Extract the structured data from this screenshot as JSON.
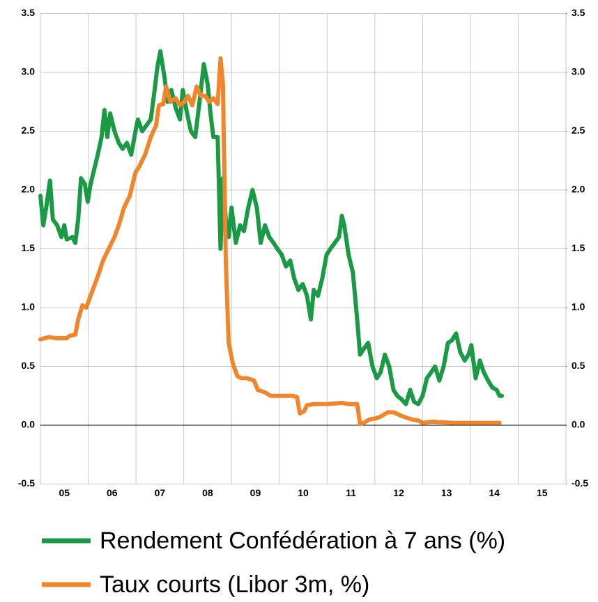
{
  "chart_data": {
    "type": "line",
    "xlim": [
      2005,
      2016
    ],
    "xgrid": [
      2005,
      2006,
      2007,
      2008,
      2009,
      2010,
      2011,
      2012,
      2013,
      2014,
      2015,
      2016
    ],
    "xticks": [
      {
        "value": 2005.5,
        "label": "05"
      },
      {
        "value": 2006.5,
        "label": "06"
      },
      {
        "value": 2007.5,
        "label": "07"
      },
      {
        "value": 2008.5,
        "label": "08"
      },
      {
        "value": 2009.5,
        "label": "09"
      },
      {
        "value": 2010.5,
        "label": "10"
      },
      {
        "value": 2011.5,
        "label": "11"
      },
      {
        "value": 2012.5,
        "label": "12"
      },
      {
        "value": 2013.5,
        "label": "13"
      },
      {
        "value": 2014.5,
        "label": "14"
      },
      {
        "value": 2015.5,
        "label": "15"
      }
    ],
    "ylim": [
      -0.5,
      3.5
    ],
    "yticks": [
      3.5,
      {
        "value": 3,
        "label": "3.0"
      },
      2.5,
      {
        "value": 2,
        "label": "2.0"
      },
      1.5,
      {
        "value": 1,
        "label": "1.0"
      },
      0.5,
      {
        "value": 0,
        "label": "0.0"
      },
      -0.5
    ],
    "y2lim": [
      -0.5,
      3.5
    ],
    "y2ticks": [
      3.5,
      {
        "value": 3,
        "label": "3.0"
      },
      2.5,
      {
        "value": 2,
        "label": "2.0"
      },
      1.5,
      {
        "value": 1,
        "label": "1.0"
      },
      0.5,
      {
        "value": 0,
        "label": "0.0"
      },
      -0.5
    ],
    "grid": true,
    "series": [
      {
        "name": "Rendement Confédération à 7 ans (%)",
        "color": "#1a9a45",
        "x": [
          2005,
          2005.06,
          2005.12,
          2005.2,
          2005.26,
          2005.35,
          2005.44,
          2005.5,
          2005.55,
          2005.67,
          2005.73,
          2005.79,
          2005.85,
          2005.93,
          2005.99,
          2006.05,
          2006.14,
          2006.2,
          2006.28,
          2006.34,
          2006.4,
          2006.46,
          2006.55,
          2006.64,
          2006.72,
          2006.81,
          2006.9,
          2006.99,
          2007.04,
          2007.13,
          2007.22,
          2007.31,
          2007.39,
          2007.45,
          2007.51,
          2007.6,
          2007.66,
          2007.74,
          2007.83,
          2007.92,
          2007.98,
          2008.07,
          2008.15,
          2008.24,
          2008.33,
          2008.42,
          2008.5,
          2008.56,
          2008.62,
          2008.71,
          2008.77,
          2008.82,
          2008.88,
          2008.94,
          2009,
          2009.09,
          2009.18,
          2009.26,
          2009.35,
          2009.44,
          2009.53,
          2009.61,
          2009.7,
          2009.79,
          2009.88,
          2009.96,
          2010.05,
          2010.14,
          2010.23,
          2010.31,
          2010.4,
          2010.49,
          2010.58,
          2010.66,
          2010.72,
          2010.81,
          2010.9,
          2010.99,
          2011.07,
          2011.16,
          2011.25,
          2011.31,
          2011.36,
          2011.45,
          2011.54,
          2011.63,
          2011.69,
          2011.77,
          2011.86,
          2011.95,
          2012.04,
          2012.12,
          2012.21,
          2012.3,
          2012.39,
          2012.47,
          2012.56,
          2012.65,
          2012.74,
          2012.82,
          2012.91,
          2013,
          2013.09,
          2013.18,
          2013.26,
          2013.35,
          2013.44,
          2013.53,
          2013.61,
          2013.7,
          2013.79,
          2013.88,
          2013.96,
          2014.02,
          2014.11,
          2014.2,
          2014.28,
          2014.37,
          2014.46,
          2014.55,
          2014.61,
          2014.66
        ],
        "values": [
          1.95,
          1.7,
          1.85,
          2.08,
          1.75,
          1.7,
          1.6,
          1.7,
          1.58,
          1.6,
          1.55,
          1.75,
          2.1,
          2.05,
          1.9,
          2.05,
          2.2,
          2.3,
          2.45,
          2.68,
          2.45,
          2.65,
          2.5,
          2.4,
          2.35,
          2.4,
          2.3,
          2.5,
          2.6,
          2.5,
          2.55,
          2.6,
          2.85,
          3.05,
          3.18,
          2.95,
          2.75,
          2.85,
          2.7,
          2.6,
          2.85,
          2.65,
          2.5,
          2.45,
          2.75,
          3.07,
          2.9,
          2.65,
          2.45,
          2.45,
          1.5,
          2.1,
          1.75,
          1.6,
          1.85,
          1.55,
          1.7,
          1.65,
          1.85,
          2.0,
          1.85,
          1.55,
          1.7,
          1.6,
          1.55,
          1.5,
          1.45,
          1.35,
          1.4,
          1.25,
          1.15,
          1.2,
          1.1,
          0.9,
          1.15,
          1.1,
          1.25,
          1.45,
          1.5,
          1.55,
          1.6,
          1.78,
          1.7,
          1.45,
          1.3,
          0.9,
          0.6,
          0.65,
          0.7,
          0.5,
          0.4,
          0.45,
          0.6,
          0.5,
          0.3,
          0.25,
          0.22,
          0.18,
          0.3,
          0.2,
          0.18,
          0.25,
          0.4,
          0.45,
          0.5,
          0.38,
          0.5,
          0.7,
          0.72,
          0.78,
          0.62,
          0.55,
          0.6,
          0.68,
          0.4,
          0.55,
          0.45,
          0.38,
          0.32,
          0.3,
          0.25,
          0.25
        ]
      },
      {
        "name": "Taux courts (Libor 3m, %)",
        "color": "#f0862b",
        "x": [
          2005,
          2005.18,
          2005.32,
          2005.55,
          2005.61,
          2005.73,
          2005.79,
          2005.88,
          2005.96,
          2006.05,
          2006.14,
          2006.23,
          2006.31,
          2006.43,
          2006.55,
          2006.64,
          2006.75,
          2006.87,
          2006.99,
          2007.07,
          2007.19,
          2007.31,
          2007.42,
          2007.48,
          2007.57,
          2007.63,
          2007.72,
          2007.83,
          2007.92,
          2008.01,
          2008.09,
          2008.18,
          2008.27,
          2008.36,
          2008.45,
          2008.53,
          2008.62,
          2008.71,
          2008.77,
          2008.82,
          2008.88,
          2008.94,
          2009.03,
          2009.12,
          2009.2,
          2009.32,
          2009.47,
          2009.55,
          2009.7,
          2009.82,
          2009.99,
          2010.28,
          2010.37,
          2010.43,
          2010.52,
          2010.58,
          2010.72,
          2011.01,
          2011.31,
          2011.45,
          2011.63,
          2011.69,
          2011.77,
          2011.89,
          2012.04,
          2012.15,
          2012.27,
          2012.39,
          2012.5,
          2012.62,
          2012.77,
          2012.91,
          2013,
          2013.2,
          2013.64,
          2014.23,
          2014.61
        ],
        "values": [
          0.73,
          0.75,
          0.74,
          0.74,
          0.76,
          0.77,
          0.9,
          1.02,
          1.0,
          1.1,
          1.2,
          1.3,
          1.4,
          1.5,
          1.6,
          1.7,
          1.85,
          1.95,
          2.15,
          2.2,
          2.3,
          2.45,
          2.55,
          2.72,
          2.73,
          2.88,
          2.75,
          2.78,
          2.72,
          2.75,
          2.8,
          2.72,
          2.88,
          2.8,
          2.8,
          2.75,
          2.78,
          2.73,
          3.12,
          2.9,
          1.4,
          0.7,
          0.52,
          0.42,
          0.4,
          0.4,
          0.38,
          0.3,
          0.28,
          0.25,
          0.25,
          0.25,
          0.24,
          0.1,
          0.12,
          0.17,
          0.18,
          0.18,
          0.19,
          0.18,
          0.18,
          0.01,
          0.02,
          0.05,
          0.06,
          0.08,
          0.11,
          0.11,
          0.09,
          0.07,
          0.05,
          0.04,
          0.02,
          0.03,
          0.02,
          0.02,
          0.02
        ]
      }
    ]
  }
}
